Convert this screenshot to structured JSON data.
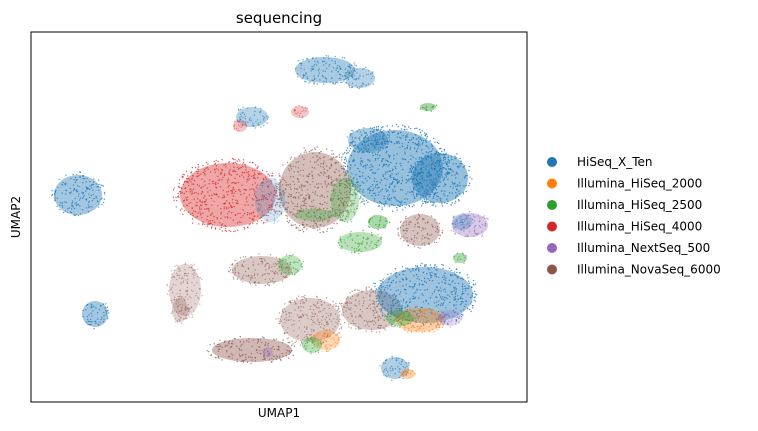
{
  "chart_data": {
    "type": "scatter",
    "title": "sequencing",
    "xlabel": "UMAP1",
    "ylabel": "UMAP2",
    "grid": false,
    "ticks": false,
    "legend_position": "right",
    "series": [
      {
        "name": "HiSeq_X_Ten",
        "color": "#1f77b4"
      },
      {
        "name": "Illumina_HiSeq_2000",
        "color": "#ff7f0e"
      },
      {
        "name": "Illumina_HiSeq_2500",
        "color": "#2ca02c"
      },
      {
        "name": "Illumina_HiSeq_4000",
        "color": "#d62728"
      },
      {
        "name": "Illumina_NextSeq_500",
        "color": "#9467bd"
      },
      {
        "name": "Illumina_NovaSeq_6000",
        "color": "#8c564b"
      }
    ]
  }
}
